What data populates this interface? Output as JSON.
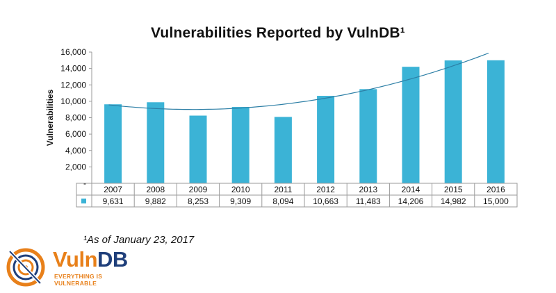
{
  "chart_data": {
    "type": "bar",
    "title": "Vulnerabilities Reported by VulnDB¹",
    "xlabel": "",
    "ylabel": "Vulnerabilities",
    "ylim": [
      0,
      16000
    ],
    "yticks": [
      "-",
      "2,000",
      "4,000",
      "6,000",
      "8,000",
      "10,000",
      "12,000",
      "14,000",
      "16,000"
    ],
    "categories": [
      "2007",
      "2008",
      "2009",
      "2010",
      "2011",
      "2012",
      "2013",
      "2014",
      "2015",
      "2016"
    ],
    "series": [
      {
        "values": [
          9631,
          9882,
          8253,
          9309,
          8094,
          10663,
          11483,
          14206,
          14982,
          15000
        ],
        "labels": [
          "9,631",
          "9,882",
          "8,253",
          "9,309",
          "8,094",
          "10,663",
          "11,483",
          "14,206",
          "14,982",
          "15,000"
        ],
        "color": "#3bb3d6"
      }
    ],
    "trendline": true,
    "trend_color": "#2d7fa6",
    "grid": false,
    "data_table": true,
    "footnote": "¹As of January 23, 2017"
  },
  "logo": {
    "name_part1": "Vuln",
    "name_part2": "DB",
    "tagline": "EVERYTHING IS VULNERABLE",
    "colors": {
      "orange": "#e8801a",
      "navy": "#1f3f7a"
    }
  }
}
